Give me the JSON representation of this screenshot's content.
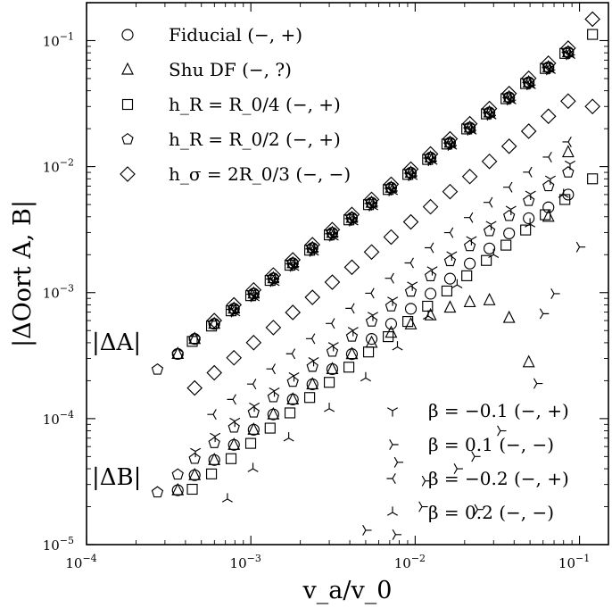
{
  "chart_data": {
    "type": "scatter",
    "title": "",
    "xlabel": "v_a/v_0",
    "ylabel": "|ΔOort A, B|",
    "xscale": "log",
    "yscale": "log",
    "xlim": [
      0.0001,
      0.15
    ],
    "ylim": [
      1e-05,
      0.2
    ],
    "x_ticks": [
      {
        "value": 0.0001,
        "label": "10^-4"
      },
      {
        "value": 0.001,
        "label": "10^-3"
      },
      {
        "value": 0.01,
        "label": "10^-2"
      },
      {
        "value": 0.1,
        "label": "10^-1"
      }
    ],
    "y_ticks": [
      {
        "value": 1e-05,
        "label": "10^-5"
      },
      {
        "value": 0.0001,
        "label": "10^-4"
      },
      {
        "value": 0.001,
        "label": "10^-3"
      },
      {
        "value": 0.01,
        "label": "10^-2"
      },
      {
        "value": 0.1,
        "label": "10^-1"
      }
    ],
    "grid": false,
    "annotations": [
      "|ΔA|",
      "|ΔB|"
    ],
    "legend_top": {
      "placement": "top-left",
      "entries": [
        {
          "marker": "circle",
          "label": "Fiducial (−, +)"
        },
        {
          "marker": "triangle",
          "label": "Shu DF (−, ?)"
        },
        {
          "marker": "square",
          "label": "h_R = R_0/4 (−, +)"
        },
        {
          "marker": "pentagon",
          "label": "h_R = R_0/2 (−, +)"
        },
        {
          "marker": "diamond",
          "label": "h_σ = 2R_0/3 (−, −)"
        }
      ]
    },
    "legend_bottom": {
      "placement": "bottom-right",
      "entries": [
        {
          "marker": "tri-down",
          "label": "β = −0.1 (−, +)"
        },
        {
          "marker": "tri-right",
          "label": "β =   0.1 (−, −)"
        },
        {
          "marker": "tri-left",
          "label": "β = −0.2 (−, +)"
        },
        {
          "marker": "tri-up",
          "label": "β =   0.2 (−, −)"
        }
      ]
    },
    "series": [
      {
        "name": "Fiducial (−, +)",
        "marker": "circle",
        "group": "A",
        "x": [
          0.000359,
          0.000455,
          0.000599,
          0.000789,
          0.00104,
          0.00137,
          0.0018,
          0.00237,
          0.00313,
          0.00412,
          0.00543,
          0.00714,
          0.00941,
          0.0124,
          0.0163,
          0.0215,
          0.0283,
          0.0373,
          0.0491,
          0.0647,
          0.0853
        ],
        "y": [
          0.000326,
          0.000429,
          0.000565,
          0.000746,
          0.000983,
          0.0013,
          0.00171,
          0.00226,
          0.00298,
          0.00392,
          0.00517,
          0.0068,
          0.00895,
          0.0118,
          0.0155,
          0.0204,
          0.0269,
          0.0355,
          0.0467,
          0.0615,
          0.081
        ]
      },
      {
        "name": "Fiducial (−, +)",
        "marker": "circle",
        "group": "B",
        "x": [
          0.000359,
          0.000455,
          0.000599,
          0.000789,
          0.00104,
          0.00137,
          0.0018,
          0.00237,
          0.00313,
          0.00412,
          0.00543,
          0.00714,
          0.00941,
          0.0124,
          0.0163,
          0.0215,
          0.0283,
          0.0373,
          0.0491,
          0.0647,
          0.0853
        ],
        "y": [
          2.7e-05,
          3.56e-05,
          4.69e-05,
          6.19e-05,
          8.16e-05,
          0.000108,
          0.000142,
          0.000187,
          0.000247,
          0.000325,
          0.000429,
          0.000565,
          0.000744,
          0.00098,
          0.00129,
          0.0017,
          0.00224,
          0.00295,
          0.00389,
          0.00475,
          0.006
        ]
      },
      {
        "name": "Shu DF (−, ?)",
        "marker": "triangle",
        "group": "A",
        "x": [
          0.000359,
          0.000455,
          0.000599,
          0.000789,
          0.00104,
          0.00137,
          0.0018,
          0.00237,
          0.00313,
          0.00412,
          0.00543,
          0.00714,
          0.00941,
          0.0124,
          0.0163,
          0.0215,
          0.0283,
          0.0373,
          0.0491,
          0.0647,
          0.0853
        ],
        "y": [
          0.000326,
          0.000429,
          0.000565,
          0.000746,
          0.000983,
          0.0013,
          0.00171,
          0.00226,
          0.00298,
          0.00392,
          0.00517,
          0.0068,
          0.00895,
          0.0118,
          0.0155,
          0.0204,
          0.0269,
          0.0355,
          0.0467,
          0.0615,
          0.081
        ]
      },
      {
        "name": "Shu DF (−, ?)",
        "marker": "triangle",
        "group": "B",
        "x": [
          0.000359,
          0.000455,
          0.000599,
          0.000789,
          0.00104,
          0.00137,
          0.0018,
          0.00237,
          0.00313,
          0.00412,
          0.00543,
          0.00714,
          0.00941,
          0.0124,
          0.0163,
          0.0215,
          0.0283,
          0.0373,
          0.0491,
          0.0647,
          0.0853
        ],
        "y": [
          2.7e-05,
          3.56e-05,
          4.69e-05,
          6.19e-05,
          8.16e-05,
          0.000108,
          0.000142,
          0.000187,
          0.000247,
          0.000325,
          0.0004,
          0.00048,
          0.00056,
          0.00066,
          0.00076,
          0.00084,
          0.00087,
          0.00063,
          0.00028,
          0.004,
          0.013
        ]
      },
      {
        "name": "h_R = R_0/4 (−, +)",
        "marker": "square",
        "group": "A",
        "x": [
          0.00044,
          0.000576,
          0.000758,
          0.000998,
          0.00131,
          0.00173,
          0.00228,
          0.003,
          0.00395,
          0.0052,
          0.00685,
          0.00902,
          0.0119,
          0.0156,
          0.0206,
          0.0271,
          0.0357,
          0.047,
          0.0619,
          0.0815,
          0.12
        ],
        "y": [
          0.00041,
          0.000543,
          0.000717,
          0.000946,
          0.00125,
          0.00165,
          0.00217,
          0.00287,
          0.00378,
          0.00499,
          0.00658,
          0.00867,
          0.0114,
          0.0151,
          0.0199,
          0.0262,
          0.0346,
          0.0456,
          0.0601,
          0.0792,
          0.112
        ]
      },
      {
        "name": "h_R = R_0/4 (−, +)",
        "marker": "square",
        "group": "B",
        "x": [
          0.00044,
          0.000576,
          0.000758,
          0.000998,
          0.00131,
          0.00173,
          0.00228,
          0.003,
          0.00395,
          0.0052,
          0.00685,
          0.00902,
          0.0119,
          0.0156,
          0.0206,
          0.0271,
          0.0357,
          0.047,
          0.0619,
          0.0815,
          0.12
        ],
        "y": [
          2.75e-05,
          3.64e-05,
          4.81e-05,
          6.36e-05,
          8.4e-05,
          0.000111,
          0.000147,
          0.000194,
          0.000256,
          0.000338,
          0.000447,
          0.00059,
          0.00078,
          0.00103,
          0.00136,
          0.0018,
          0.00238,
          0.00314,
          0.00415,
          0.00548,
          0.008
        ]
      },
      {
        "name": "h_R = R_0/2 (−, +)",
        "marker": "pentagon",
        "group": "A",
        "x": [
          0.00027,
          0.000359,
          0.000455,
          0.000599,
          0.000789,
          0.00104,
          0.00137,
          0.0018,
          0.00237,
          0.00313,
          0.00412,
          0.00543,
          0.00714,
          0.00941,
          0.0124,
          0.0163,
          0.0215,
          0.0283,
          0.0373,
          0.0491,
          0.0647,
          0.0853
        ],
        "y": [
          0.000245,
          0.000326,
          0.000429,
          0.000565,
          0.000746,
          0.000983,
          0.0013,
          0.00171,
          0.00226,
          0.00298,
          0.00392,
          0.00517,
          0.0068,
          0.00895,
          0.0118,
          0.0155,
          0.0204,
          0.0269,
          0.0355,
          0.0467,
          0.0615,
          0.081
        ]
      },
      {
        "name": "h_R = R_0/2 (−, +)",
        "marker": "pentagon",
        "group": "B",
        "x": [
          0.00027,
          0.000359,
          0.000455,
          0.000599,
          0.000789,
          0.00104,
          0.00137,
          0.0018,
          0.00237,
          0.00313,
          0.00412,
          0.00543,
          0.00714,
          0.00941,
          0.0124,
          0.0163,
          0.0215,
          0.0283,
          0.0373,
          0.0491,
          0.0647,
          0.0853
        ],
        "y": [
          2.6e-05,
          3.6e-05,
          4.8e-05,
          6.4e-05,
          8.5e-05,
          0.000112,
          0.000148,
          0.000196,
          0.000258,
          0.00034,
          0.000448,
          0.00059,
          0.000778,
          0.00102,
          0.00135,
          0.00178,
          0.00234,
          0.00308,
          0.00406,
          0.00535,
          0.007,
          0.009
        ]
      },
      {
        "name": "h_σ = 2R_0/3 (−, −)",
        "marker": "diamond",
        "group": "A",
        "x": [
          0.000599,
          0.000789,
          0.00104,
          0.00137,
          0.0018,
          0.00237,
          0.00313,
          0.00412,
          0.00543,
          0.00714,
          0.00941,
          0.0124,
          0.0163,
          0.0215,
          0.0283,
          0.0373,
          0.0491,
          0.0647,
          0.0853,
          0.12
        ],
        "y": [
          0.0006,
          0.0008,
          0.00105,
          0.00138,
          0.00182,
          0.0024,
          0.00316,
          0.00417,
          0.00549,
          0.00724,
          0.00955,
          0.0126,
          0.0166,
          0.0219,
          0.0289,
          0.038,
          0.0502,
          0.0661,
          0.0871,
          0.148
        ]
      },
      {
        "name": "h_σ = 2R_0/3 (−, −)",
        "marker": "diamond",
        "group": "B",
        "x": [
          0.000455,
          0.000599,
          0.000789,
          0.00104,
          0.00137,
          0.0018,
          0.00237,
          0.00313,
          0.00412,
          0.00543,
          0.00714,
          0.00941,
          0.0124,
          0.0163,
          0.0215,
          0.0283,
          0.0373,
          0.0491,
          0.0647,
          0.0853,
          0.12
        ],
        "y": [
          0.000175,
          0.000231,
          0.000304,
          0.000401,
          0.000528,
          0.000696,
          0.000917,
          0.00121,
          0.00159,
          0.0021,
          0.00276,
          0.00364,
          0.0048,
          0.00633,
          0.00834,
          0.011,
          0.0145,
          0.0191,
          0.0251,
          0.0331,
          0.03
        ]
      },
      {
        "name": "β = −0.1 (−, +)",
        "marker": "tri-down",
        "group": "A",
        "x": [
          0.00078,
          0.00103,
          0.00136,
          0.00179,
          0.00236,
          0.00311,
          0.0041,
          0.00541,
          0.00713,
          0.0094,
          0.0124,
          0.0163,
          0.0215,
          0.0284,
          0.0374,
          0.0493,
          0.065,
          0.0856
        ],
        "y": [
          0.00072,
          0.00095,
          0.00125,
          0.00165,
          0.00218,
          0.00287,
          0.00378,
          0.00499,
          0.00657,
          0.00866,
          0.0114,
          0.0151,
          0.0199,
          0.0262,
          0.0345,
          0.0455,
          0.06,
          0.079
        ]
      },
      {
        "name": "β = −0.1 (−, +)",
        "marker": "tri-down",
        "group": "B",
        "x": [
          0.00046,
          0.000606,
          0.000799,
          0.00105,
          0.00139,
          0.00183,
          0.00241,
          0.00318,
          0.00419,
          0.00553,
          0.00729,
          0.00961,
          0.0127,
          0.0167,
          0.022,
          0.029,
          0.0383,
          0.0504,
          0.0665,
          0.0876
        ],
        "y": [
          5.5e-05,
          7.25e-05,
          9.56e-05,
          0.000126,
          0.000166,
          0.000219,
          0.000289,
          0.000381,
          0.000502,
          0.000662,
          0.000873,
          0.00115,
          0.00152,
          0.002,
          0.00264,
          0.00348,
          0.00459,
          0.00605,
          0.00798,
          0.0105
        ]
      },
      {
        "name": "β =   0.1 (−, −)",
        "marker": "tri-right",
        "group": "A",
        "x": [
          0.00079,
          0.00104,
          0.00137,
          0.00181,
          0.00238,
          0.00314,
          0.00414,
          0.00546,
          0.0072,
          0.00949,
          0.0125,
          0.0165,
          0.0217,
          0.0286,
          0.0378,
          0.0498,
          0.0656,
          0.0865
        ],
        "y": [
          0.0007,
          0.000925,
          0.00122,
          0.00161,
          0.00212,
          0.0028,
          0.00369,
          0.00486,
          0.00641,
          0.00845,
          0.0111,
          0.0147,
          0.0194,
          0.0255,
          0.0337,
          0.0444,
          0.0585,
          0.077
        ]
      },
      {
        "name": "β =   0.1 (−, −)",
        "marker": "tri-right",
        "group": "B",
        "x": [
          0.005,
          0.0076,
          0.0078,
          0.011,
          0.0115,
          0.018,
          0.023,
          0.024,
          0.033,
          0.055,
          0.06,
          0.07,
          0.1
        ],
        "y": [
          1.3e-05,
          1.2e-05,
          4.5e-05,
          2e-05,
          3.2e-05,
          4e-05,
          5e-05,
          1.9e-05,
          8e-05,
          0.00019,
          0.00068,
          0.00098,
          0.0023
        ]
      },
      {
        "name": "β = −0.2 (−, +)",
        "marker": "tri-left",
        "group": "A",
        "x": [
          0.00077,
          0.00102,
          0.00134,
          0.00177,
          0.00233,
          0.00307,
          0.00405,
          0.00534,
          0.00704,
          0.00928,
          0.0122,
          0.0161,
          0.0213,
          0.028,
          0.0369,
          0.0487,
          0.0642,
          0.0846
        ],
        "y": [
          0.000735,
          0.00097,
          0.00128,
          0.00169,
          0.00222,
          0.00293,
          0.00387,
          0.0051,
          0.00672,
          0.00886,
          0.0117,
          0.0154,
          0.0203,
          0.0268,
          0.0353,
          0.0466,
          0.0614,
          0.081
        ]
      },
      {
        "name": "β = −0.2 (−, +)",
        "marker": "tri-left",
        "group": "B",
        "x": [
          0.00059,
          0.000778,
          0.00103,
          0.00135,
          0.00178,
          0.00235,
          0.0031,
          0.00409,
          0.00539,
          0.00711,
          0.00937,
          0.0124,
          0.0163,
          0.0215,
          0.0283,
          0.0373,
          0.0492,
          0.0649,
          0.0855
        ],
        "y": [
          0.000108,
          0.000142,
          0.000188,
          0.000248,
          0.000327,
          0.000431,
          0.000569,
          0.00075,
          0.000989,
          0.0013,
          0.00172,
          0.00227,
          0.00299,
          0.00394,
          0.0052,
          0.00686,
          0.00904,
          0.0119,
          0.0157
        ]
      },
      {
        "name": "β =   0.2 (−, −)",
        "marker": "tri-up",
        "group": "A",
        "x": [
          0.0008,
          0.00105,
          0.00139,
          0.00183,
          0.00241,
          0.00318,
          0.00419,
          0.00553,
          0.00729,
          0.00961,
          0.0127,
          0.0167,
          0.022,
          0.029,
          0.0383,
          0.0504,
          0.0665,
          0.0876
        ],
        "y": [
          0.00069,
          0.00091,
          0.0012,
          0.00158,
          0.00209,
          0.00275,
          0.00363,
          0.00479,
          0.00632,
          0.00833,
          0.011,
          0.0145,
          0.0191,
          0.0252,
          0.0332,
          0.0438,
          0.0578,
          0.0762
        ]
      },
      {
        "name": "β =   0.2 (−, −)",
        "marker": "tri-up",
        "group": "B",
        "x": [
          0.00072,
          0.00103,
          0.0017,
          0.003,
          0.005,
          0.0078,
          0.012,
          0.018,
          0.03,
          0.05,
          0.08
        ],
        "y": [
          2.3e-05,
          4e-05,
          7e-05,
          0.00012,
          0.00021,
          0.00037,
          0.00065,
          0.00115,
          0.002,
          0.0035,
          0.006
        ]
      }
    ]
  }
}
